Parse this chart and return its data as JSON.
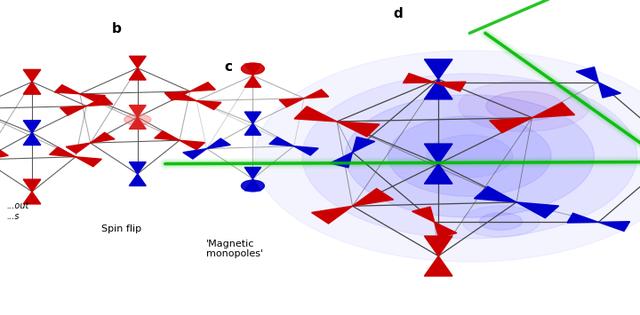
{
  "bg_color": "#ffffff",
  "label_b": "b",
  "label_c": "c",
  "label_d": "d",
  "label_spin_flip": "Spin flip",
  "label_monopoles": "'Magnetic\nmonopoles'",
  "red": "#cc0000",
  "blue": "#0000cc",
  "green": "#00aa00"
}
